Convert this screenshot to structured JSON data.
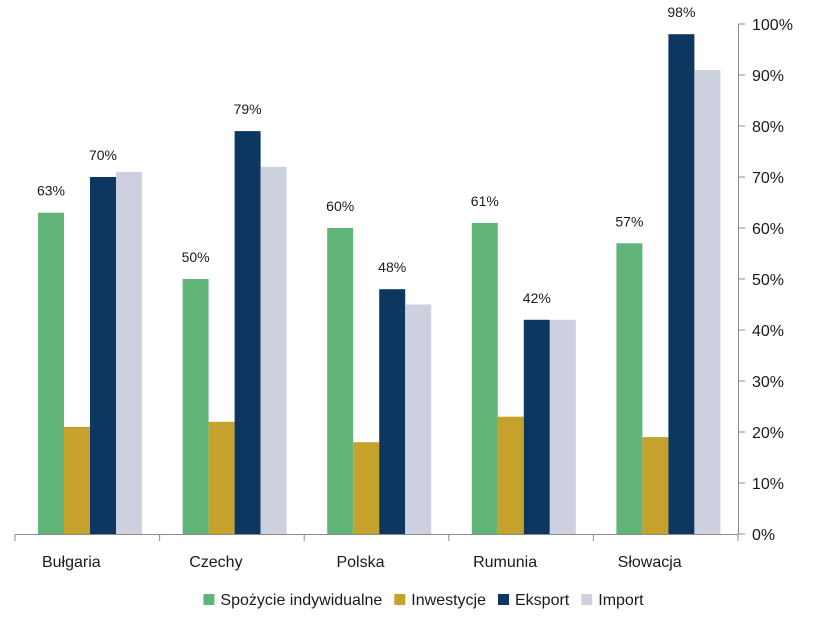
{
  "chart_data": {
    "type": "bar",
    "title": "",
    "xlabel": "",
    "ylabel": "",
    "categories": [
      "Bułgaria",
      "Czechy",
      "Polska",
      "Rumunia",
      "Słowacja"
    ],
    "series": [
      {
        "name": "Spożycie indywidualne",
        "color": "#61b57a",
        "values": [
          63,
          50,
          60,
          61,
          57
        ],
        "labels": [
          "63%",
          "50%",
          "60%",
          "61%",
          "57%"
        ]
      },
      {
        "name": "Inwestycje",
        "color": "#c4a22c",
        "values": [
          21,
          22,
          18,
          23,
          19
        ],
        "labels": []
      },
      {
        "name": "Eksport",
        "color": "#0d3660",
        "values": [
          70,
          79,
          48,
          42,
          98
        ],
        "labels": [
          "70%",
          "79%",
          "48%",
          "42%",
          "98%"
        ]
      },
      {
        "name": "Import",
        "color": "#cdd1df",
        "values": [
          71,
          72,
          45,
          42,
          91
        ],
        "labels": []
      }
    ],
    "ylim": [
      0,
      100
    ],
    "yticks": [
      "0%",
      "10%",
      "20%",
      "30%",
      "40%",
      "50%",
      "60%",
      "70%",
      "80%",
      "90%",
      "100%"
    ],
    "y_axis_side": "right",
    "grid": false,
    "legend_position": "bottom"
  }
}
